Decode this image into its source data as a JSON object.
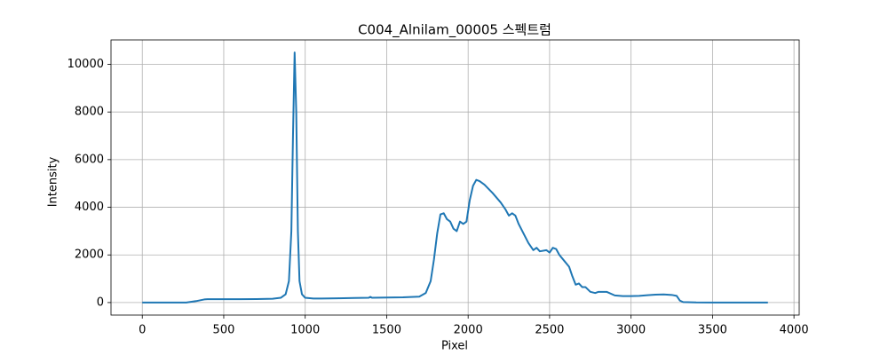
{
  "chart_data": {
    "type": "line",
    "title": "C004_Alnilam_00005 스펙트럼",
    "x_label": "Pixel",
    "y_label": "Intensity",
    "x": [
      0,
      270,
      330,
      380,
      400,
      500,
      600,
      700,
      800,
      850,
      880,
      900,
      915,
      925,
      935,
      945,
      955,
      965,
      980,
      1000,
      1050,
      1100,
      1200,
      1300,
      1390,
      1400,
      1410,
      1500,
      1600,
      1700,
      1740,
      1770,
      1790,
      1810,
      1830,
      1850,
      1870,
      1890,
      1910,
      1930,
      1950,
      1970,
      1990,
      2010,
      2030,
      2050,
      2070,
      2100,
      2150,
      2200,
      2230,
      2250,
      2270,
      2290,
      2310,
      2340,
      2370,
      2400,
      2420,
      2440,
      2480,
      2500,
      2520,
      2540,
      2560,
      2590,
      2620,
      2640,
      2660,
      2680,
      2700,
      2720,
      2750,
      2780,
      2800,
      2850,
      2900,
      2950,
      3000,
      3050,
      3100,
      3150,
      3200,
      3250,
      3280,
      3300,
      3320,
      3400,
      3500,
      3840
    ],
    "series": [
      {
        "name": "Intensity",
        "color": "#1f77b4",
        "values": [
          0,
          0,
          60,
          130,
          140,
          140,
          140,
          145,
          160,
          200,
          350,
          900,
          3000,
          7000,
          10500,
          8000,
          3000,
          900,
          350,
          200,
          170,
          170,
          180,
          190,
          200,
          240,
          200,
          210,
          220,
          250,
          400,
          900,
          1800,
          2900,
          3700,
          3750,
          3500,
          3400,
          3100,
          3000,
          3400,
          3300,
          3400,
          4300,
          4900,
          5150,
          5100,
          4950,
          4600,
          4200,
          3900,
          3650,
          3750,
          3650,
          3300,
          2900,
          2500,
          2200,
          2300,
          2150,
          2200,
          2100,
          2300,
          2250,
          2000,
          1750,
          1500,
          1100,
          750,
          800,
          650,
          650,
          450,
          400,
          450,
          450,
          300,
          270,
          270,
          280,
          310,
          330,
          340,
          320,
          280,
          80,
          20,
          5,
          3,
          0
        ]
      }
    ],
    "xlim": [
      -192,
      4032
    ],
    "ylim": [
      -525,
      11025
    ],
    "xticks": [
      0,
      500,
      1000,
      1500,
      2000,
      2500,
      3000,
      3500,
      4000
    ],
    "yticks": [
      0,
      2000,
      4000,
      6000,
      8000,
      10000
    ],
    "grid": true
  }
}
